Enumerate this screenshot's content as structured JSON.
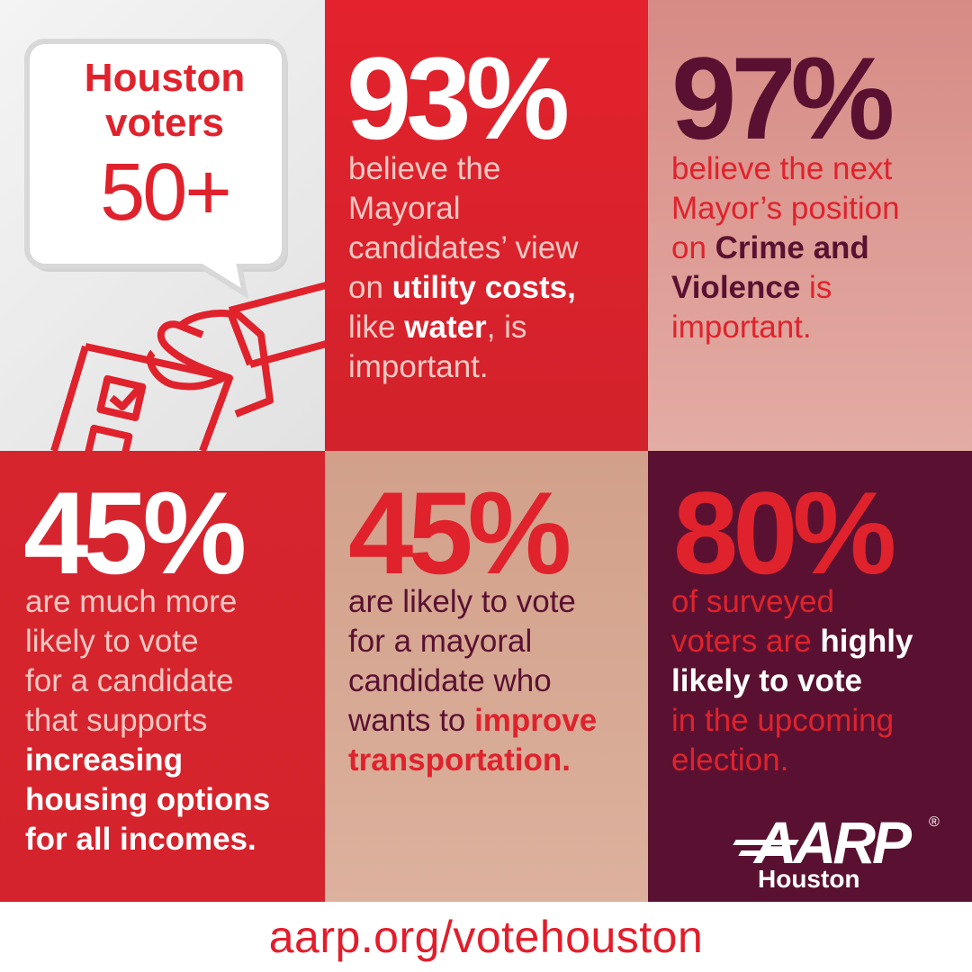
{
  "colors": {
    "red": "#e0222c",
    "red_dark": "#d4232c",
    "pink": "#dc9f98",
    "tan": "#d6a891",
    "maroon": "#5a1131",
    "light_gray": "#ececec",
    "light_pink_text": "#f5c7c2"
  },
  "badge": {
    "line1": "Houston",
    "line2": "voters",
    "line3": "50+"
  },
  "illustration": {
    "icon": "ballot-hand-icon"
  },
  "stat1": {
    "percent": "93%",
    "t1": "believe the",
    "t2": "Mayoral",
    "t3": "candidates’ view",
    "t4a": "on ",
    "t4b": "utility costs,",
    "t5a": "like ",
    "t5b": "water",
    "t5c": ", is",
    "t6": "important."
  },
  "stat2": {
    "percent": "97%",
    "t1": "believe the next",
    "t2": "Mayor’s position",
    "t3a": "on ",
    "t3b": "Crime and",
    "t4a": "Violence",
    "t4b": " is",
    "t5": "important."
  },
  "stat3": {
    "percent": "45%",
    "t1": "are much more",
    "t2": "likely to vote",
    "t3": "for a candidate",
    "t4": "that supports",
    "t5": "increasing",
    "t6": "housing options",
    "t7": "for all incomes."
  },
  "stat4": {
    "percent": "45%",
    "t1": "are likely to vote",
    "t2": "for a mayoral",
    "t3": "candidate who",
    "t4a": "wants to ",
    "t4b": "improve",
    "t5": "transportation."
  },
  "stat5": {
    "percent": "80%",
    "t1": "of surveyed",
    "t2a": "voters are ",
    "t2b": "highly",
    "t3": "likely to vote",
    "t4": "in the upcoming",
    "t5": "election."
  },
  "logo": {
    "brand": "AARP",
    "registered": "®",
    "sub": "Houston"
  },
  "footer": {
    "url": "aarp.org/votehouston"
  }
}
